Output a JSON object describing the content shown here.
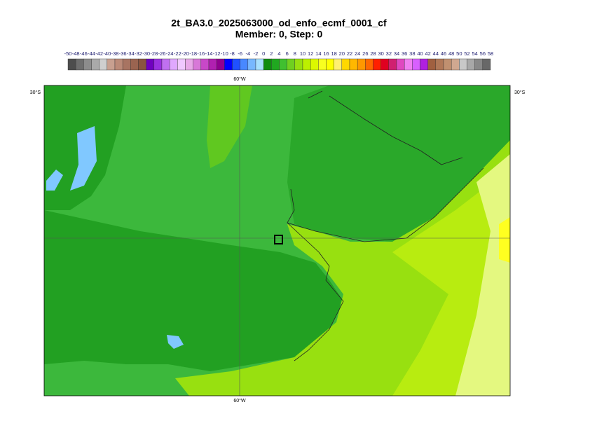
{
  "header": {
    "title": "2t_BA3.0_2025063000_od_enfo_ecmf_0001_cf",
    "subtitle": "Member: 0, Step: 0"
  },
  "colorbar": {
    "ticks": [
      -50,
      -48,
      -46,
      -44,
      -42,
      -40,
      -38,
      -36,
      -34,
      -32,
      -30,
      -28,
      -26,
      -24,
      -22,
      -20,
      -18,
      -16,
      -14,
      -12,
      -10,
      -8,
      -6,
      -4,
      -2,
      0,
      2,
      4,
      6,
      8,
      10,
      12,
      14,
      16,
      18,
      20,
      22,
      24,
      26,
      28,
      30,
      32,
      34,
      36,
      38,
      40,
      42,
      44,
      46,
      48,
      50,
      52,
      54,
      56,
      58
    ],
    "colors": [
      "#4d4d4d",
      "#6e6e6e",
      "#8c8c8c",
      "#aaaaaa",
      "#cfcfcf",
      "#c8a090",
      "#bb8a78",
      "#a87462",
      "#9a6450",
      "#8a5440",
      "#7000c0",
      "#9a30e0",
      "#c070f0",
      "#e0a8ff",
      "#f0c8ff",
      "#e8a8e8",
      "#d878d8",
      "#c848c8",
      "#b020b0",
      "#900090",
      "#0000ff",
      "#2050ff",
      "#4888ff",
      "#78b8ff",
      "#a8e0ff",
      "#108c10",
      "#20a820",
      "#40c030",
      "#70d020",
      "#98e010",
      "#bcf000",
      "#dcf800",
      "#f8ff20",
      "#ffff00",
      "#fff070",
      "#ffd800",
      "#ffb800",
      "#ff9800",
      "#ff6800",
      "#ff2000",
      "#e00020",
      "#d02070",
      "#e048c0",
      "#f080f0",
      "#d860ff",
      "#b020e0",
      "#a06040",
      "#b07858",
      "#c09070",
      "#d0a890",
      "#c8c8c8",
      "#a8a8a8",
      "#888888",
      "#686868"
    ]
  },
  "map": {
    "lon_label": "60°W",
    "lat_label": "30°S"
  }
}
